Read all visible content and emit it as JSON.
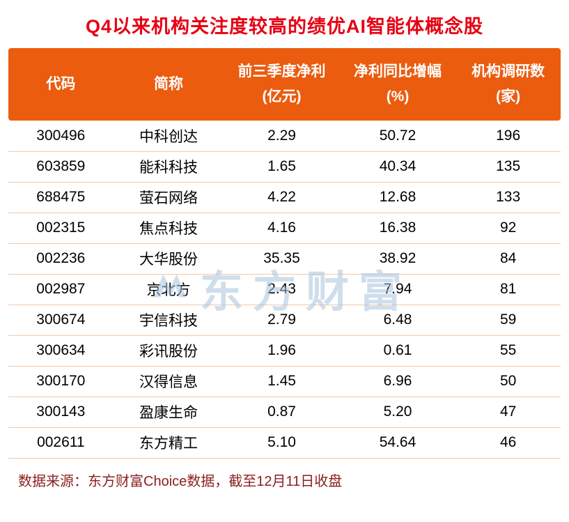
{
  "title": "Q4以来机构关注度较高的绩优AI智能体概念股",
  "watermark": "东方财富",
  "footer": "数据来源：东方财富Choice数据，截至12月11日收盘",
  "colors": {
    "title": "#E60012",
    "header_bg": "#EB5C0F",
    "header_text": "#FFFFFF",
    "row_divider": "#F5C8A6",
    "footer_text": "#8B1E1E",
    "watermark": "#A8C4DE"
  },
  "chart_data": {
    "type": "table",
    "title": "Q4以来机构关注度较高的绩优AI智能体概念股",
    "columns": [
      {
        "line1": "代码",
        "line2": ""
      },
      {
        "line1": "简称",
        "line2": ""
      },
      {
        "line1": "前三季度净利",
        "line2": "(亿元)"
      },
      {
        "line1": "净利同比增幅",
        "line2": "(%)"
      },
      {
        "line1": "机构调研数",
        "line2": "(家)"
      }
    ],
    "rows": [
      [
        "300496",
        "中科创达",
        "2.29",
        "50.72",
        "196"
      ],
      [
        "603859",
        "能科科技",
        "1.65",
        "40.34",
        "135"
      ],
      [
        "688475",
        "萤石网络",
        "4.22",
        "12.68",
        "133"
      ],
      [
        "002315",
        "焦点科技",
        "4.16",
        "16.38",
        "92"
      ],
      [
        "002236",
        "大华股份",
        "35.35",
        "38.92",
        "84"
      ],
      [
        "002987",
        "京北方",
        "2.43",
        "7.94",
        "81"
      ],
      [
        "300674",
        "宇信科技",
        "2.79",
        "6.48",
        "59"
      ],
      [
        "300634",
        "彩讯股份",
        "1.96",
        "0.61",
        "55"
      ],
      [
        "300170",
        "汉得信息",
        "1.45",
        "6.96",
        "50"
      ],
      [
        "300143",
        "盈康生命",
        "0.87",
        "5.20",
        "47"
      ],
      [
        "002611",
        "东方精工",
        "5.10",
        "54.64",
        "46"
      ]
    ],
    "source_note": "数据来源：东方财富Choice数据，截至12月11日收盘"
  }
}
